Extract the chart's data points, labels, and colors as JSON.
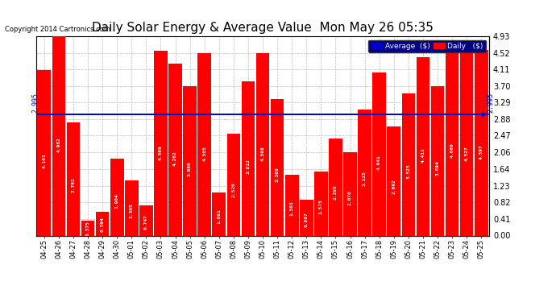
{
  "title": "Daily Solar Energy & Average Value  Mon May 26 05:35",
  "copyright": "Copyright 2014 Cartronics.com",
  "categories": [
    "04-25",
    "04-26",
    "04-27",
    "04-28",
    "04-29",
    "04-30",
    "05-01",
    "05-02",
    "05-03",
    "05-04",
    "05-05",
    "05-06",
    "05-07",
    "05-08",
    "05-09",
    "05-10",
    "05-11",
    "05-12",
    "05-13",
    "05-14",
    "05-15",
    "05-16",
    "05-17",
    "05-18",
    "05-19",
    "05-20",
    "05-21",
    "05-22",
    "05-23",
    "05-24",
    "05-25"
  ],
  "values": [
    4.101,
    4.982,
    2.792,
    0.375,
    0.594,
    1.904,
    1.365,
    0.747,
    4.569,
    4.262,
    3.686,
    4.505,
    1.061,
    2.52,
    3.812,
    4.508,
    3.369,
    1.503,
    0.887,
    1.575,
    2.395,
    2.07,
    3.125,
    4.041,
    2.692,
    3.525,
    4.411,
    3.694,
    4.669,
    4.527,
    4.597
  ],
  "average": 2.995,
  "bar_color": "#ff0000",
  "avg_line_color": "#0000cc",
  "background_color": "#ffffff",
  "plot_bg_color": "#ffffff",
  "grid_color": "#bbbbbb",
  "title_fontsize": 11,
  "ylim": [
    0,
    4.93
  ],
  "yticks": [
    0.0,
    0.41,
    0.82,
    1.23,
    1.64,
    2.06,
    2.47,
    2.88,
    3.29,
    3.7,
    4.11,
    4.52,
    4.93
  ],
  "legend_avg_color": "#0000cc",
  "legend_daily_color": "#ff0000",
  "avg_label": "Average  ($)",
  "daily_label": "Daily   ($)"
}
